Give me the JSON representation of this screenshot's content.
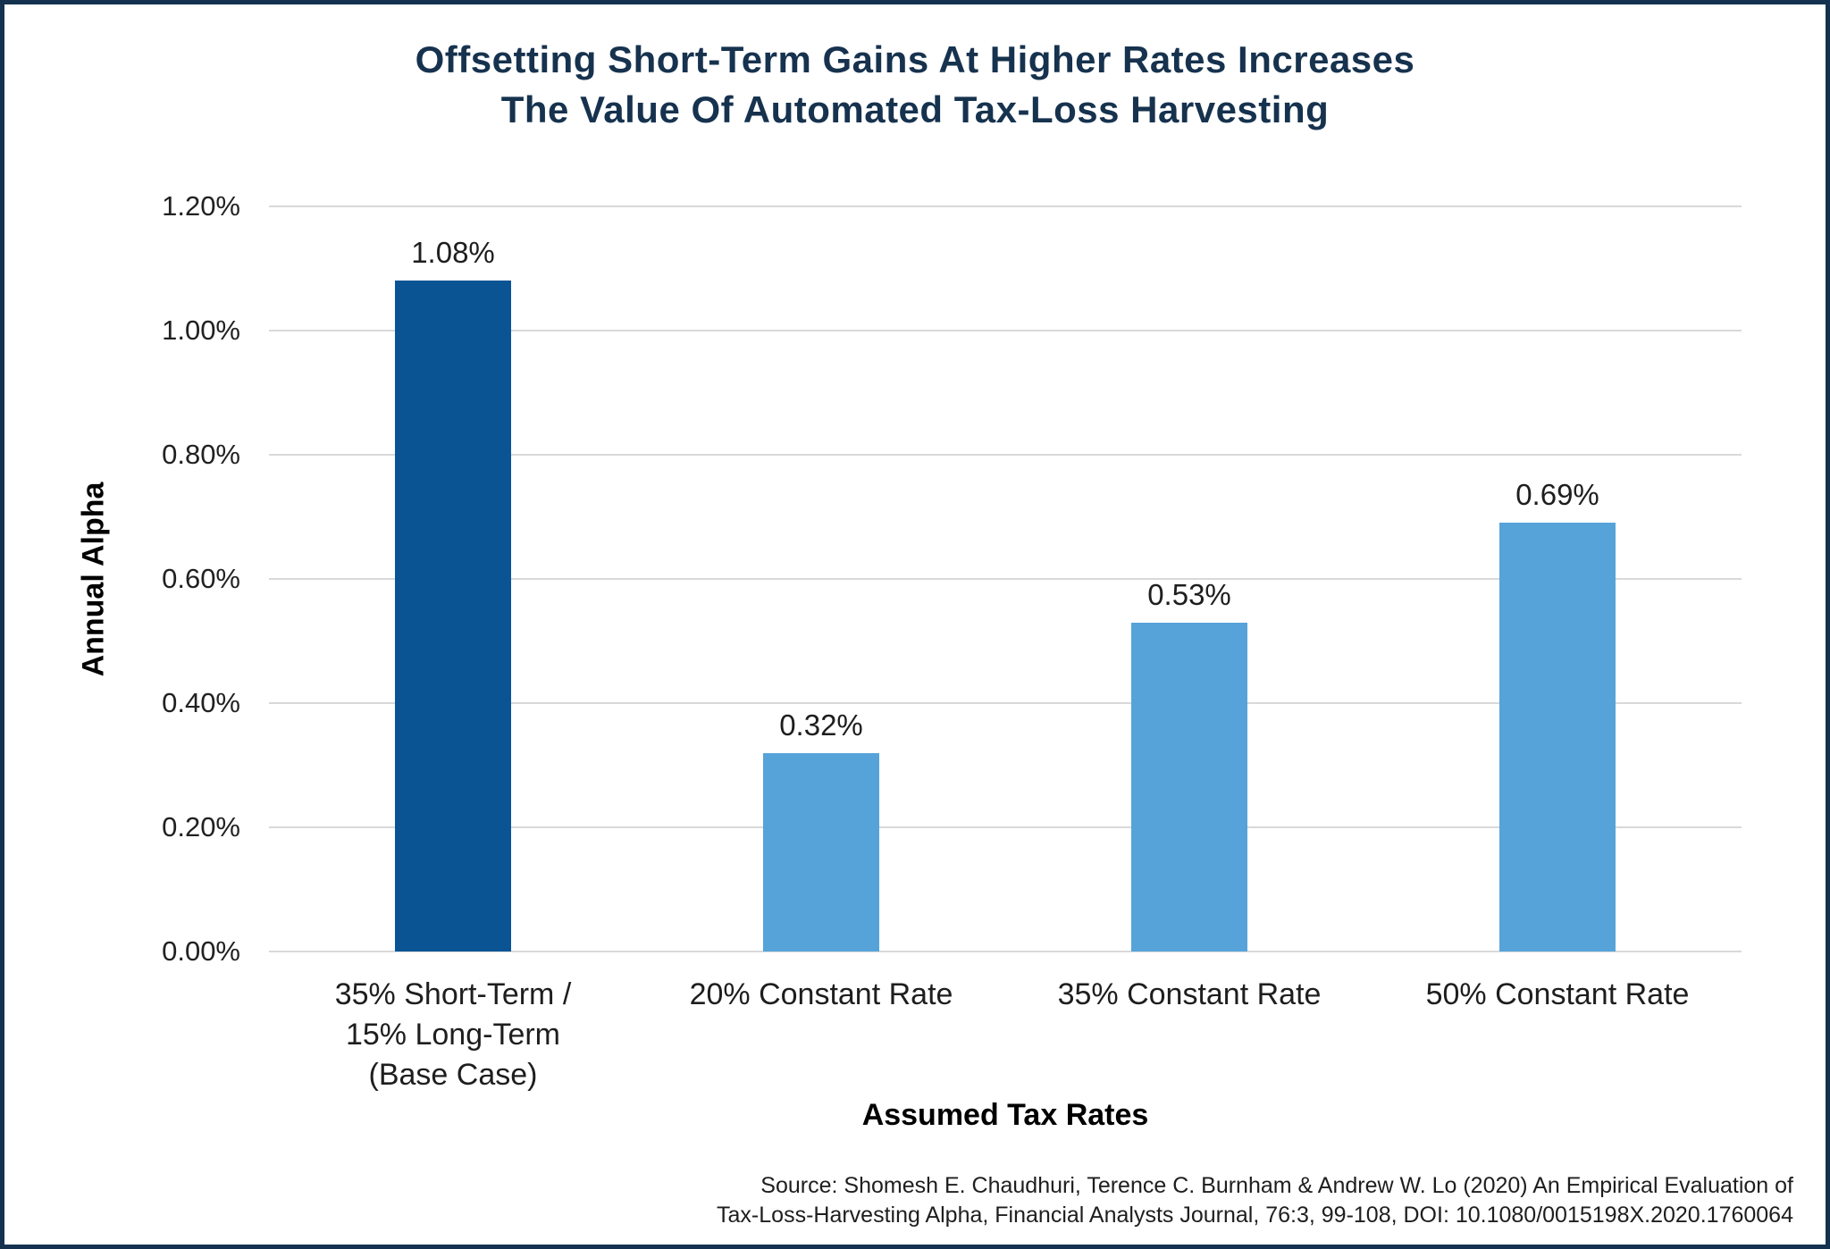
{
  "frame": {
    "border_color": "#14324F",
    "background_color": "#FFFFFF"
  },
  "title": {
    "line1": "Offsetting Short-Term Gains At Higher Rates Increases",
    "line2": "The Value Of Automated Tax-Loss Harvesting",
    "color": "#16324E"
  },
  "chart_data": {
    "type": "bar",
    "title": "Offsetting Short-Term Gains At Higher Rates Increases The Value Of Automated Tax-Loss Harvesting",
    "xlabel": "Assumed Tax Rates",
    "ylabel": "Annual Alpha",
    "categories": [
      [
        "35% Short-Term /",
        "15% Long-Term",
        "(Base Case)"
      ],
      [
        "20% Constant Rate"
      ],
      [
        "35% Constant Rate"
      ],
      [
        "50% Constant Rate"
      ]
    ],
    "values": [
      1.08,
      0.32,
      0.53,
      0.69
    ],
    "value_labels": [
      "1.08%",
      "0.32%",
      "0.53%",
      "0.69%"
    ],
    "bar_colors": [
      "#0A5494",
      "#56A3D9",
      "#56A3D9",
      "#56A3D9"
    ],
    "ylim": [
      0,
      1.2
    ],
    "ytick_interval": 0.2,
    "ytick_labels": [
      "0.00%",
      "0.20%",
      "0.40%",
      "0.60%",
      "0.80%",
      "1.00%",
      "1.20%"
    ],
    "grid": true,
    "gridline_color": "#D9D9D9",
    "legend": "none"
  },
  "source": {
    "line1": "Source: Shomesh E. Chaudhuri, Terence C. Burnham & Andrew W. Lo (2020) An Empirical Evaluation of",
    "line2": "Tax-Loss-Harvesting Alpha, Financial Analysts Journal, 76:3, 99-108, DOI: 10.1080/0015198X.2020.1760064"
  }
}
